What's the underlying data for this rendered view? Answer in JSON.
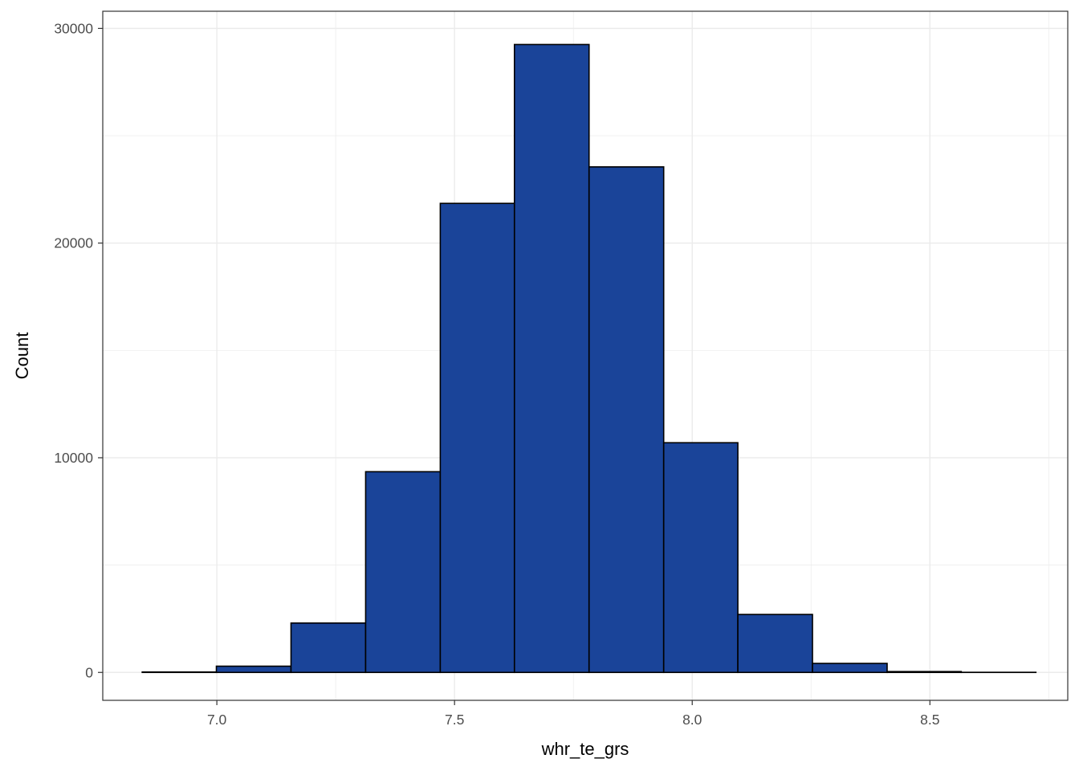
{
  "chart_data": {
    "type": "bar",
    "xlabel": "whr_te_grs",
    "ylabel": "Count",
    "xlim": [
      6.76,
      8.79
    ],
    "ylim": [
      -1300,
      30800
    ],
    "x_ticks": [
      7.0,
      7.5,
      8.0,
      8.5
    ],
    "x_tick_labels": [
      "7.0",
      "7.5",
      "8.0",
      "8.5"
    ],
    "y_ticks": [
      0,
      10000,
      20000,
      30000
    ],
    "y_tick_labels": [
      "0",
      "10000",
      "20000",
      "30000"
    ],
    "bins": [
      {
        "x0": 6.843,
        "x1": 6.999,
        "count": 20
      },
      {
        "x0": 6.999,
        "x1": 7.156,
        "count": 290
      },
      {
        "x0": 7.156,
        "x1": 7.313,
        "count": 2300
      },
      {
        "x0": 7.313,
        "x1": 7.47,
        "count": 9350
      },
      {
        "x0": 7.47,
        "x1": 7.626,
        "count": 21850
      },
      {
        "x0": 7.626,
        "x1": 7.783,
        "count": 29250
      },
      {
        "x0": 7.783,
        "x1": 7.94,
        "count": 23550
      },
      {
        "x0": 7.94,
        "x1": 8.096,
        "count": 10700
      },
      {
        "x0": 8.096,
        "x1": 8.253,
        "count": 2700
      },
      {
        "x0": 8.253,
        "x1": 8.41,
        "count": 420
      },
      {
        "x0": 8.41,
        "x1": 8.566,
        "count": 40
      },
      {
        "x0": 8.566,
        "x1": 8.723,
        "count": 5
      }
    ],
    "grid": true,
    "fill_color": "#1a4499",
    "edge_color": "#000000",
    "grid_color": "#ebebeb"
  }
}
